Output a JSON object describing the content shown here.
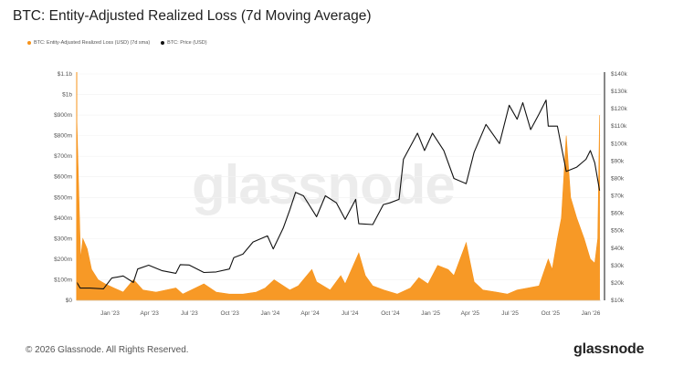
{
  "title": "BTC: Entity-Adjusted Realized Loss (7d Moving Average)",
  "footer": "© 2026 Glassnode. All Rights Reserved.",
  "brand": "glassnode",
  "watermark": "glassnode",
  "colors": {
    "loss": "#f7931a",
    "price": "#111111"
  },
  "chart_data": {
    "type": "area",
    "series": [
      {
        "name": "BTC: Entity-Adjusted Realized Loss (USD) (7d sma)",
        "axis": "left",
        "color": "#f7931a",
        "x": [
          "2022-11-01",
          "2022-11-10",
          "2022-11-15",
          "2022-11-25",
          "2022-12-05",
          "2022-12-20",
          "2023-01-05",
          "2023-01-25",
          "2023-02-15",
          "2023-03-10",
          "2023-03-15",
          "2023-04-01",
          "2023-05-01",
          "2023-06-15",
          "2023-07-01",
          "2023-08-18",
          "2023-09-15",
          "2023-10-15",
          "2023-11-15",
          "2023-12-15",
          "2024-01-05",
          "2024-01-25",
          "2024-03-01",
          "2024-03-20",
          "2024-04-20",
          "2024-05-01",
          "2024-06-01",
          "2024-06-25",
          "2024-07-05",
          "2024-08-05",
          "2024-08-20",
          "2024-09-06",
          "2024-10-01",
          "2024-11-01",
          "2024-12-01",
          "2024-12-20",
          "2025-01-10",
          "2025-02-01",
          "2025-02-25",
          "2025-03-10",
          "2025-04-07",
          "2025-04-25",
          "2025-05-15",
          "2025-06-15",
          "2025-07-10",
          "2025-08-01",
          "2025-08-25",
          "2025-09-20",
          "2025-10-11",
          "2025-10-20",
          "2025-11-01",
          "2025-11-10",
          "2025-11-21",
          "2025-12-01",
          "2025-12-15",
          "2026-01-01",
          "2026-01-15",
          "2026-01-25",
          "2026-02-01",
          "2026-02-05"
        ],
        "y": [
          900000000,
          200000000,
          300000000,
          250000000,
          150000000,
          100000000,
          80000000,
          60000000,
          40000000,
          100000000,
          90000000,
          50000000,
          40000000,
          60000000,
          30000000,
          80000000,
          40000000,
          30000000,
          30000000,
          40000000,
          60000000,
          100000000,
          50000000,
          70000000,
          150000000,
          90000000,
          50000000,
          120000000,
          80000000,
          230000000,
          120000000,
          70000000,
          50000000,
          30000000,
          60000000,
          110000000,
          80000000,
          170000000,
          150000000,
          120000000,
          280000000,
          90000000,
          50000000,
          40000000,
          30000000,
          50000000,
          60000000,
          70000000,
          200000000,
          150000000,
          300000000,
          400000000,
          800000000,
          500000000,
          400000000,
          300000000,
          200000000,
          180000000,
          300000000,
          900000000
        ]
      },
      {
        "name": "BTC: Price (USD)",
        "axis": "right",
        "color": "#111111",
        "x": [
          "2022-11-01",
          "2022-11-09",
          "2022-12-01",
          "2023-01-01",
          "2023-01-20",
          "2023-02-15",
          "2023-03-10",
          "2023-03-20",
          "2023-04-14",
          "2023-05-15",
          "2023-06-15",
          "2023-06-25",
          "2023-07-15",
          "2023-08-18",
          "2023-09-15",
          "2023-10-15",
          "2023-10-25",
          "2023-11-15",
          "2023-12-08",
          "2024-01-10",
          "2024-01-23",
          "2024-02-15",
          "2024-03-01",
          "2024-03-14",
          "2024-04-01",
          "2024-05-01",
          "2024-05-21",
          "2024-06-15",
          "2024-07-05",
          "2024-07-29",
          "2024-08-05",
          "2024-09-06",
          "2024-09-30",
          "2024-10-15",
          "2024-11-05",
          "2024-11-15",
          "2024-12-17",
          "2025-01-02",
          "2025-01-20",
          "2025-02-15",
          "2025-03-10",
          "2025-04-07",
          "2025-04-25",
          "2025-05-22",
          "2025-06-22",
          "2025-07-14",
          "2025-08-01",
          "2025-08-14",
          "2025-09-01",
          "2025-09-20",
          "2025-10-06",
          "2025-10-11",
          "2025-11-01",
          "2025-11-21",
          "2025-12-15",
          "2026-01-05",
          "2026-01-15",
          "2026-01-25",
          "2026-02-05"
        ],
        "y": [
          20500,
          17000,
          17000,
          16600,
          22800,
          24000,
          20300,
          28000,
          30200,
          27000,
          25500,
          30500,
          30300,
          26000,
          26300,
          28000,
          34500,
          36500,
          43500,
          47000,
          39500,
          51500,
          62000,
          72000,
          70000,
          58000,
          70000,
          66000,
          56500,
          68000,
          54000,
          53500,
          65000,
          66000,
          68000,
          91000,
          106000,
          96000,
          106000,
          96000,
          80000,
          77000,
          95000,
          111000,
          100000,
          122000,
          114000,
          123500,
          108000,
          117000,
          125000,
          110000,
          110000,
          84000,
          86500,
          91000,
          96000,
          89000,
          73000
        ]
      }
    ],
    "x_ticks": [
      "Jan '23",
      "Apr '23",
      "Jul '23",
      "Oct '23",
      "Jan '24",
      "Apr '24",
      "Jul '24",
      "Oct '24",
      "Jan '25",
      "Apr '25",
      "Jul '25",
      "Oct '25",
      "Jan '26"
    ],
    "y_left_ticks": [
      "$0",
      "$100m",
      "$200m",
      "$300m",
      "$400m",
      "$500m",
      "$600m",
      "$700m",
      "$800m",
      "$900m",
      "$1b",
      "$1.1b"
    ],
    "y_right_ticks": [
      "$10k",
      "$20k",
      "$30k",
      "$40k",
      "$50k",
      "$60k",
      "$70k",
      "$80k",
      "$90k",
      "$100k",
      "$110k",
      "$120k",
      "$130k",
      "$140k"
    ],
    "ylim_left": [
      0,
      1100000000
    ],
    "ylim_right": [
      10000,
      140000
    ],
    "xlim": [
      "2022-11-01",
      "2026-02-08"
    ],
    "legend_position": "top-left"
  }
}
